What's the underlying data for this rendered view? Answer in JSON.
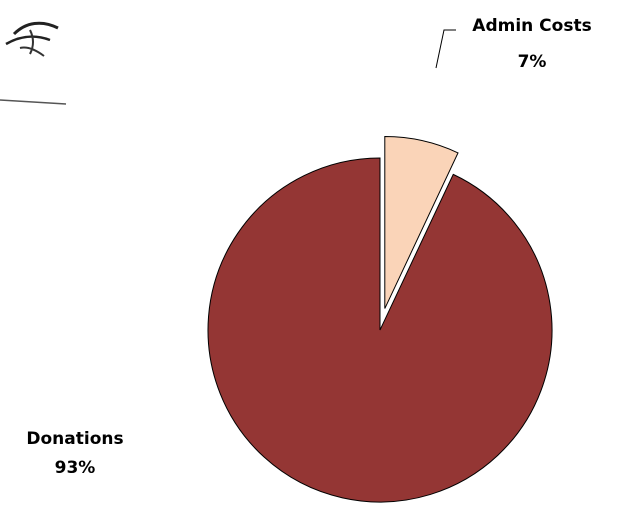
{
  "chart_data": {
    "type": "pie",
    "slices": [
      {
        "label": "Donations",
        "value": 93,
        "display": "93%",
        "color": "#943634",
        "exploded": false
      },
      {
        "label": "Admin Costs",
        "value": 7,
        "display": "7%",
        "color": "#FAD4B8",
        "exploded": true
      }
    ],
    "title": "",
    "legend": "none",
    "start_angle_deg": 0,
    "direction": "clockwise"
  }
}
